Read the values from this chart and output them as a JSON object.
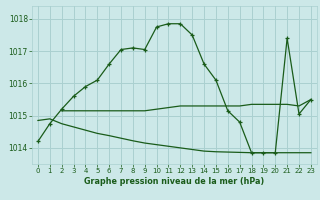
{
  "xlabel": "Graphe pression niveau de la mer (hPa)",
  "bg_color": "#cce8e8",
  "grid_color": "#aad0d0",
  "line_color": "#1a5c1a",
  "xlim": [
    -0.5,
    23.5
  ],
  "ylim": [
    1013.5,
    1018.4
  ],
  "yticks": [
    1014,
    1015,
    1016,
    1017,
    1018
  ],
  "xticks": [
    0,
    1,
    2,
    3,
    4,
    5,
    6,
    7,
    8,
    9,
    10,
    11,
    12,
    13,
    14,
    15,
    16,
    17,
    18,
    19,
    20,
    21,
    22,
    23
  ],
  "main_x": [
    0,
    1,
    2,
    3,
    4,
    5,
    6,
    7,
    8,
    9,
    10,
    11,
    12,
    13,
    14,
    15,
    16,
    17,
    18,
    19,
    20,
    21,
    22,
    23
  ],
  "main_y": [
    1014.2,
    1014.75,
    1015.2,
    1015.6,
    1015.9,
    1016.1,
    1016.6,
    1017.05,
    1017.1,
    1017.05,
    1017.75,
    1017.85,
    1017.85,
    1017.5,
    1016.6,
    1016.1,
    1015.15,
    1014.8,
    1013.85,
    1013.85,
    1013.85,
    1017.4,
    1015.05,
    1015.5
  ],
  "line2_x": [
    0,
    1,
    2,
    3,
    4,
    5,
    6,
    7,
    8,
    9,
    10,
    11,
    12,
    13,
    14,
    15,
    16,
    17,
    18,
    19,
    20,
    21,
    22,
    23
  ],
  "line2_y": [
    1014.85,
    1014.9,
    1014.75,
    1014.65,
    1014.55,
    1014.45,
    1014.38,
    1014.3,
    1014.22,
    1014.15,
    1014.1,
    1014.05,
    1014.0,
    1013.95,
    1013.9,
    1013.88,
    1013.87,
    1013.86,
    1013.85,
    1013.85,
    1013.85,
    1013.85,
    1013.85,
    1013.85
  ],
  "line3_x": [
    2,
    3,
    4,
    5,
    6,
    7,
    8,
    9,
    10,
    11,
    12,
    13,
    14,
    15,
    16,
    17,
    18,
    19,
    20,
    21,
    22,
    23
  ],
  "line3_y": [
    1015.15,
    1015.15,
    1015.15,
    1015.15,
    1015.15,
    1015.15,
    1015.15,
    1015.15,
    1015.2,
    1015.25,
    1015.3,
    1015.3,
    1015.3,
    1015.3,
    1015.3,
    1015.3,
    1015.35,
    1015.35,
    1015.35,
    1015.35,
    1015.3,
    1015.5
  ]
}
